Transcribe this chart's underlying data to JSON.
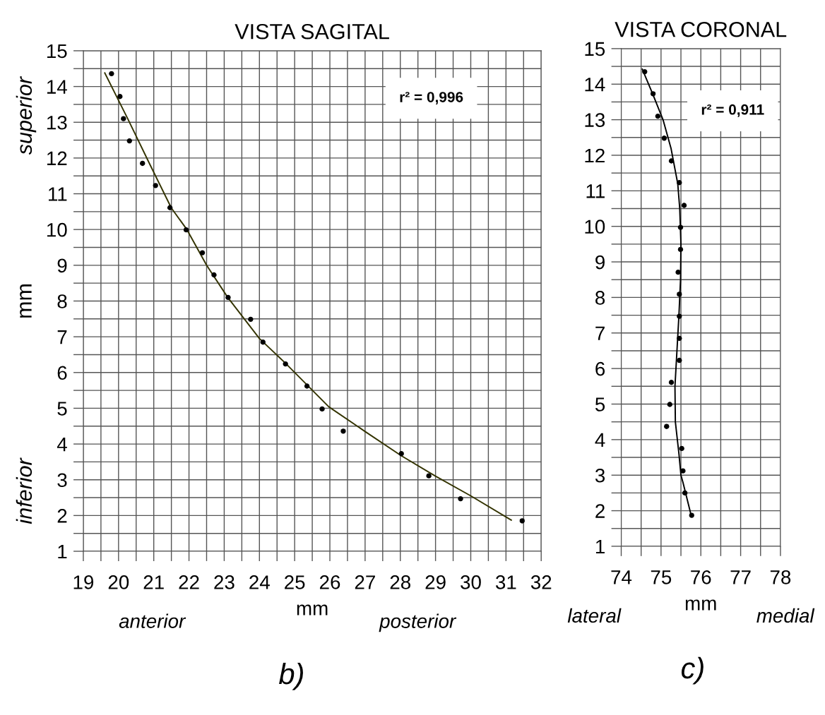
{
  "chart_data": [
    {
      "type": "scatter",
      "title": "VISTA SAGITAL",
      "xlabel": "mm",
      "ylabel": "mm",
      "annotations": [
        "r² = 0,996",
        "superior",
        "inferior",
        "anterior",
        "posterior",
        "b)"
      ],
      "xlim": [
        19,
        32
      ],
      "ylim": [
        1,
        15
      ],
      "xticks": [
        19,
        {
          "value": 19.5,
          "label": null
        },
        20,
        {
          "value": 20.5,
          "label": null
        },
        21,
        {
          "value": 21.5,
          "label": null
        },
        22,
        {
          "value": 22.5,
          "label": null
        },
        23,
        {
          "value": 23.5,
          "label": null
        },
        24,
        {
          "value": 24.5,
          "label": null
        },
        25,
        {
          "value": 25.5,
          "label": null
        },
        26,
        {
          "value": 26.5,
          "label": null
        },
        27,
        {
          "value": 27.5,
          "label": null
        },
        28,
        {
          "value": 28.5,
          "label": null
        },
        29,
        {
          "value": 29.5,
          "label": null
        },
        30,
        {
          "value": 30.5,
          "label": null
        },
        31,
        {
          "value": 31.5,
          "label": null
        },
        32
      ],
      "yticks": [
        1,
        {
          "value": 1.5,
          "label": null
        },
        2,
        {
          "value": 2.5,
          "label": null
        },
        3,
        {
          "value": 3.5,
          "label": null
        },
        4,
        {
          "value": 4.5,
          "label": null
        },
        5,
        {
          "value": 5.5,
          "label": null
        },
        6,
        {
          "value": 6.5,
          "label": null
        },
        7,
        {
          "value": 7.5,
          "label": null
        },
        8,
        {
          "value": 8.5,
          "label": null
        },
        9,
        {
          "value": 9.5,
          "label": null
        },
        10,
        {
          "value": 10.5,
          "label": null
        },
        11,
        {
          "value": 11.5,
          "label": null
        },
        12,
        {
          "value": 12.5,
          "label": null
        },
        13,
        {
          "value": 13.5,
          "label": null
        },
        14,
        {
          "value": 14.5,
          "label": null
        },
        15
      ],
      "grid": true,
      "legend": false,
      "series": [
        {
          "marker": "circle",
          "color": "#000000",
          "x": [
            19.8,
            20.04,
            20.14,
            20.31,
            20.68,
            21.05,
            21.46,
            21.92,
            22.38,
            22.71,
            23.11,
            23.75,
            24.1,
            24.74,
            25.35,
            25.78,
            26.38,
            28.03,
            28.81,
            29.71,
            31.46
          ],
          "values": [
            14.36,
            13.72,
            13.1,
            12.48,
            11.85,
            11.23,
            10.61,
            9.99,
            9.35,
            8.73,
            8.1,
            7.49,
            6.85,
            6.24,
            5.62,
            4.98,
            4.36,
            3.73,
            3.11,
            2.47,
            1.85
          ]
        },
        {
          "type": "line",
          "color": "#333300",
          "line_style": "solid",
          "x": [
            19.61,
            20.26,
            20.9,
            21.5,
            21.94,
            22.5,
            23.1,
            24.0,
            24.74,
            25.97,
            27.0,
            28.03,
            29.0,
            30.0,
            31.15
          ],
          "values": [
            14.38,
            13.1,
            11.8,
            10.6,
            10.0,
            9.0,
            8.1,
            6.95,
            6.26,
            5.04,
            4.35,
            3.67,
            3.1,
            2.55,
            1.87
          ]
        }
      ]
    },
    {
      "type": "scatter",
      "title": "VISTA CORONAL",
      "xlabel": "mm",
      "annotations": [
        "r² = 0,911",
        "lateral",
        "medial",
        "c)"
      ],
      "xlim": [
        74,
        78
      ],
      "ylim": [
        1,
        15
      ],
      "xticks": [
        74,
        {
          "value": 74.5,
          "label": null
        },
        75,
        {
          "value": 75.5,
          "label": null
        },
        76,
        {
          "value": 76.5,
          "label": null
        },
        77,
        {
          "value": 77.5,
          "label": null
        },
        78
      ],
      "yticks": [
        1,
        {
          "value": 1.5,
          "label": null
        },
        2,
        {
          "value": 2.5,
          "label": null
        },
        3,
        {
          "value": 3.5,
          "label": null
        },
        4,
        {
          "value": 4.5,
          "label": null
        },
        5,
        {
          "value": 5.5,
          "label": null
        },
        6,
        {
          "value": 6.5,
          "label": null
        },
        7,
        {
          "value": 7.5,
          "label": null
        },
        8,
        {
          "value": 8.5,
          "label": null
        },
        9,
        {
          "value": 9.5,
          "label": null
        },
        10,
        {
          "value": 10.5,
          "label": null
        },
        11,
        {
          "value": 11.5,
          "label": null
        },
        12,
        {
          "value": 12.5,
          "label": null
        },
        13,
        {
          "value": 13.5,
          "label": null
        },
        14,
        {
          "value": 14.5,
          "label": null
        },
        15
      ],
      "grid": true,
      "legend": false,
      "series": [
        {
          "marker": "circle",
          "color": "#000000",
          "x": [
            74.59,
            74.8,
            74.92,
            75.08,
            75.26,
            75.46,
            75.58,
            75.49,
            75.49,
            75.43,
            75.46,
            75.46,
            75.46,
            75.46,
            75.26,
            75.22,
            75.14,
            75.52,
            75.55,
            75.6,
            75.77
          ],
          "values": [
            14.35,
            13.73,
            13.1,
            12.48,
            11.84,
            11.23,
            10.59,
            9.97,
            9.35,
            8.71,
            8.09,
            7.47,
            6.85,
            6.23,
            5.61,
            4.99,
            4.37,
            3.75,
            3.12,
            2.5,
            1.87
          ]
        },
        {
          "type": "line",
          "color": "#000000",
          "line_style": "solid",
          "x": [
            74.53,
            74.8,
            75.05,
            75.25,
            75.42,
            75.47,
            75.5,
            75.49,
            75.45,
            75.4,
            75.35,
            75.36,
            75.45,
            75.5,
            75.55,
            75.75
          ],
          "values": [
            14.42,
            13.7,
            13.0,
            12.2,
            11.2,
            10.5,
            9.5,
            8.5,
            7.5,
            6.5,
            5.5,
            4.5,
            3.6,
            3.0,
            2.8,
            1.9
          ]
        }
      ]
    }
  ]
}
